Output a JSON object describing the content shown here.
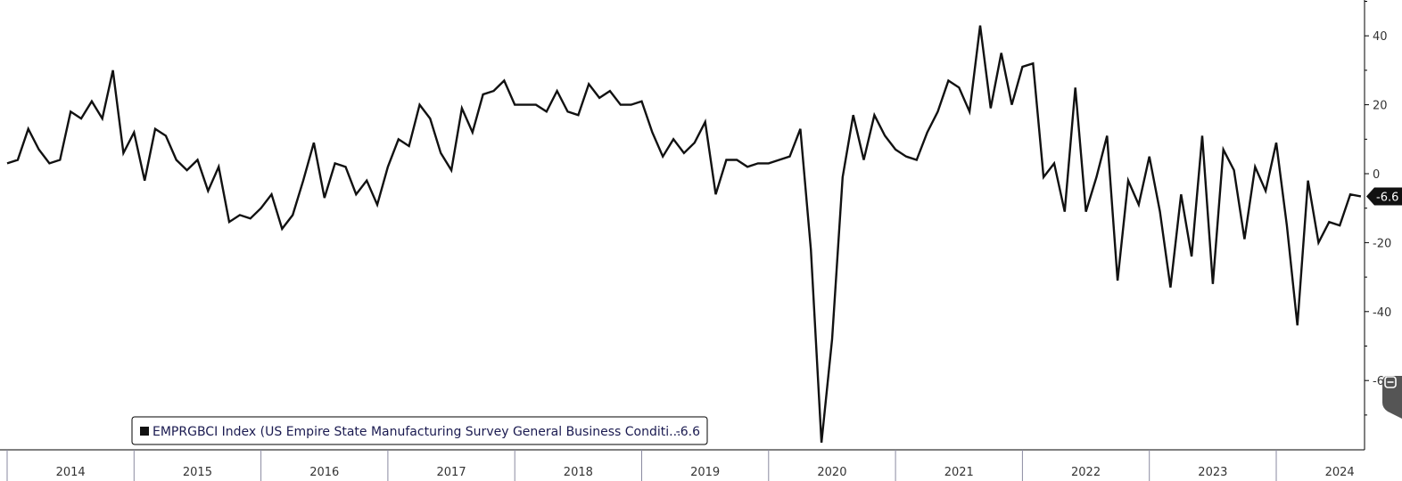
{
  "chart_data": {
    "type": "line",
    "legend_label": "EMPRGBCI Index (US Empire State Manufacturing Survey General Business Conditi...",
    "legend_value": "-6.6",
    "last_value_label": "-6.6",
    "legend_placement": "bottom-left",
    "x_start_year": 2014,
    "x_tick_labels": [
      "2014",
      "2015",
      "2016",
      "2017",
      "2018",
      "2019",
      "2020",
      "2021",
      "2022",
      "2023",
      "2024"
    ],
    "y_tick_labels": [
      "40",
      "20",
      "0",
      "-20",
      "-40",
      "-60"
    ],
    "ylim": [
      -80,
      50
    ],
    "grid": false,
    "colors": {
      "line": "#111111",
      "legend_border": "#000000",
      "last_badge": "#111111"
    },
    "series": [
      {
        "values": [
          3,
          4,
          13,
          7,
          3,
          4,
          18,
          16,
          21,
          16,
          30,
          6,
          12,
          -2,
          13,
          11,
          4,
          1,
          4,
          -5,
          2,
          -14,
          -12,
          -13,
          -10,
          -6,
          -16,
          -12,
          -2,
          9,
          -7,
          3,
          2,
          -6,
          -2,
          -9,
          2,
          10,
          8,
          20,
          16,
          6,
          1,
          19,
          12,
          23,
          24,
          27,
          20,
          20,
          20,
          18,
          24,
          18,
          17,
          26,
          22,
          24,
          20,
          20,
          21,
          12,
          5,
          10,
          6,
          9,
          15,
          -6,
          4,
          4,
          2,
          3,
          3,
          4,
          5,
          13,
          -22,
          -78,
          -48,
          -1,
          17,
          4,
          17,
          11,
          7,
          5,
          4,
          12,
          18,
          27,
          25,
          18,
          43,
          19,
          35,
          20,
          31,
          32,
          -1,
          3,
          -11,
          25,
          -11,
          -1,
          11,
          -31,
          -2,
          -9,
          5,
          -11,
          -33,
          -6,
          -24,
          11,
          -32,
          7,
          1,
          -19,
          2,
          -5,
          9,
          -15,
          -44,
          -2,
          -20,
          -14,
          -15,
          -6,
          -6.6
        ]
      }
    ]
  }
}
